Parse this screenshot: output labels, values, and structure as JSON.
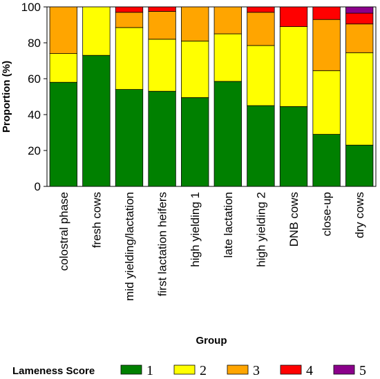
{
  "chart_data": {
    "type": "bar",
    "stacked": true,
    "categories": [
      "colostral phase",
      "fresh cows",
      "mid yielding/lactation",
      "first lactation heifers",
      "high yielding 1",
      "late lactation",
      "high yielding 2",
      "DNB cows",
      "close-up",
      "dry cows"
    ],
    "series": [
      {
        "name": "1",
        "color": "#008000",
        "values": [
          58,
          73,
          54,
          53,
          49.5,
          58.5,
          45,
          44.5,
          29,
          23
        ]
      },
      {
        "name": "2",
        "color": "#ffff00",
        "values": [
          16,
          27,
          34.5,
          29,
          31.5,
          26.5,
          33.5,
          44.5,
          35.5,
          51.5
        ]
      },
      {
        "name": "3",
        "color": "#ffa500",
        "values": [
          26,
          0,
          8.5,
          15.5,
          19,
          15,
          18.5,
          0,
          28.5,
          16
        ]
      },
      {
        "name": "4",
        "color": "#ff0000",
        "values": [
          0,
          0,
          3,
          2.5,
          0,
          0,
          3,
          11,
          7,
          6
        ]
      },
      {
        "name": "5",
        "color": "#8b008b",
        "values": [
          0,
          0,
          0,
          0,
          0,
          0,
          0,
          0,
          0,
          3.5
        ]
      }
    ],
    "xlabel": "Group",
    "ylabel": "Proportion (%)",
    "ylim": [
      0,
      100
    ],
    "yticks": [
      0,
      20,
      40,
      60,
      80,
      100
    ],
    "grid": false,
    "legend": {
      "title": "Lameness Score",
      "placement": "bottom"
    }
  }
}
